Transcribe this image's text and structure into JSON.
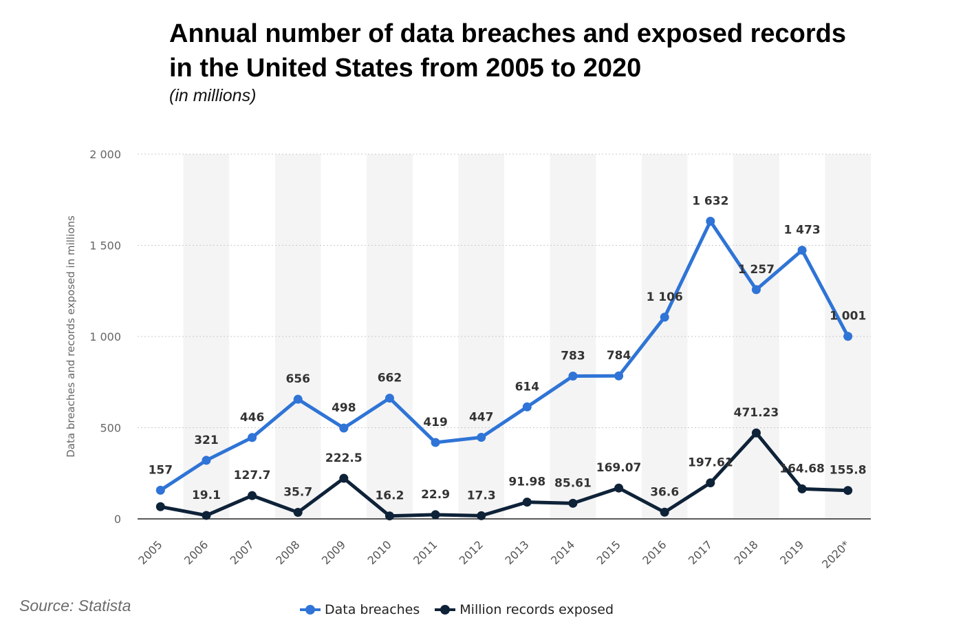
{
  "header": {
    "title": "Annual number of data breaches and exposed records in the United States from 2005 to 2020",
    "subtitle": "(in millions)"
  },
  "footer": {
    "source": "Source: Statista"
  },
  "chart_data": {
    "type": "line",
    "ylabel": "Data breaches and records exposed in millions",
    "xlabel": "",
    "ylim": [
      0,
      2000
    ],
    "yticks": [
      0,
      500,
      1000,
      1500,
      2000
    ],
    "ytick_labels": [
      "0",
      "500",
      "1 000",
      "1 500",
      "2 000"
    ],
    "grid": "horizontal dotted",
    "legend_position": "bottom",
    "categories": [
      "2005",
      "2006",
      "2007",
      "2008",
      "2009",
      "2010",
      "2011",
      "2012",
      "2013",
      "2014",
      "2015",
      "2016",
      "2017",
      "2018",
      "2019",
      "2020*"
    ],
    "series": [
      {
        "name": "Data breaches",
        "color": "#2f74d6",
        "values": [
          157,
          321,
          446,
          656,
          498,
          662,
          419,
          447,
          614,
          783,
          784,
          1106,
          1632,
          1257,
          1473,
          1001
        ],
        "labels": [
          "157",
          "321",
          "446",
          "656",
          "498",
          "662",
          "419",
          "447",
          "614",
          "783",
          "784",
          "1 106",
          "1 632",
          "1 257",
          "1 473",
          "1 001"
        ]
      },
      {
        "name": "Million records exposed",
        "color": "#0e2238",
        "values": [
          66.9,
          19.1,
          127.7,
          35.7,
          222.5,
          16.2,
          22.9,
          17.3,
          91.98,
          85.61,
          169.07,
          36.6,
          197.61,
          471.23,
          164.68,
          155.8
        ],
        "labels": [
          "",
          "19.1",
          "127.7",
          "35.7",
          "222.5",
          "16.2",
          "22.9",
          "17.3",
          "91.98",
          "85.61",
          "169.07",
          "36.6",
          "197.61",
          "471.23",
          "164.68",
          "155.8"
        ]
      }
    ]
  }
}
